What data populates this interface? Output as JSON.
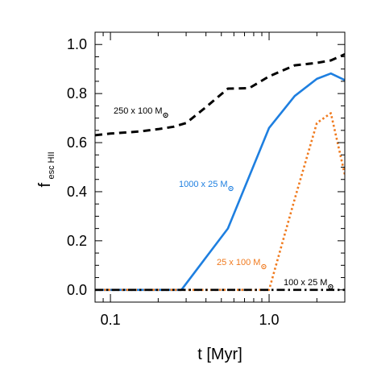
{
  "chart_data": {
    "type": "line",
    "xlabel": "t [Myr]",
    "ylabel_main": "f",
    "ylabel_sub": "esc HII",
    "x_scale": "log",
    "xlim": [
      0.08,
      3.0
    ],
    "ylim": [
      -0.05,
      1.05
    ],
    "x_ticks": [
      0.1,
      1.0
    ],
    "x_tick_labels": [
      "0.1",
      "1.0"
    ],
    "y_ticks": [
      0.0,
      0.2,
      0.4,
      0.6,
      0.8,
      1.0
    ],
    "y_tick_labels": [
      "0.0",
      "0.2",
      "0.4",
      "0.6",
      "0.8",
      "1.0"
    ],
    "grid": false,
    "series": [
      {
        "name": "250 x 100 M",
        "color": "#000000",
        "style": "dashed",
        "label_text": "250 x 100 M",
        "x": [
          0.08,
          0.1,
          0.15,
          0.2,
          0.25,
          0.3,
          0.4,
          0.55,
          0.75,
          1.0,
          1.45,
          2.0,
          2.45,
          3.0
        ],
        "y": [
          0.63,
          0.637,
          0.645,
          0.655,
          0.665,
          0.68,
          0.745,
          0.82,
          0.822,
          0.87,
          0.915,
          0.925,
          0.935,
          0.96
        ]
      },
      {
        "name": "1000 x 25 M",
        "color": "#1e7fe0",
        "style": "solid",
        "label_text": "1000 x 25 M",
        "x": [
          0.08,
          0.28,
          0.55,
          1.0,
          1.45,
          2.0,
          2.45,
          3.0
        ],
        "y": [
          0.0,
          0.0,
          0.25,
          0.66,
          0.79,
          0.86,
          0.882,
          0.855
        ]
      },
      {
        "name": "25 x 100 M",
        "color": "#f07a1e",
        "style": "dotted",
        "label_text": "25 x 100 M",
        "x": [
          0.08,
          1.0,
          1.45,
          2.0,
          2.45,
          3.0
        ],
        "y": [
          0.0,
          0.0,
          0.37,
          0.68,
          0.72,
          0.47
        ]
      },
      {
        "name": "100 x 25 M",
        "color": "#000000",
        "style": "dashdot",
        "label_text": "100 x 25 M",
        "x": [
          0.08,
          3.0
        ],
        "y": [
          0.0,
          0.0
        ]
      }
    ]
  }
}
